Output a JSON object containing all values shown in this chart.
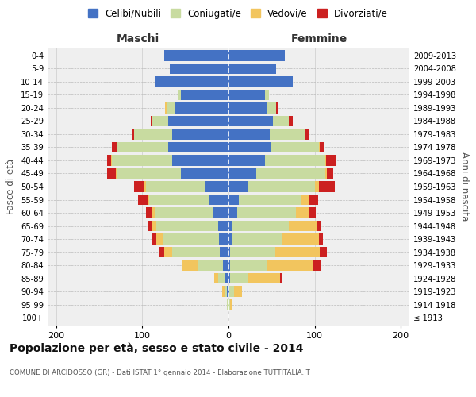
{
  "age_groups": [
    "100+",
    "95-99",
    "90-94",
    "85-89",
    "80-84",
    "75-79",
    "70-74",
    "65-69",
    "60-64",
    "55-59",
    "50-54",
    "45-49",
    "40-44",
    "35-39",
    "30-34",
    "25-29",
    "20-24",
    "15-19",
    "10-14",
    "5-9",
    "0-4"
  ],
  "birth_years": [
    "≤ 1913",
    "1914-1918",
    "1919-1923",
    "1924-1928",
    "1929-1933",
    "1934-1938",
    "1939-1943",
    "1944-1948",
    "1949-1953",
    "1954-1958",
    "1959-1963",
    "1964-1968",
    "1969-1973",
    "1974-1978",
    "1979-1983",
    "1984-1988",
    "1989-1993",
    "1994-1998",
    "1999-2003",
    "2004-2008",
    "2009-2013"
  ],
  "male_celibi": [
    0,
    1,
    2,
    4,
    6,
    10,
    11,
    12,
    18,
    22,
    28,
    55,
    65,
    70,
    65,
    70,
    62,
    55,
    85,
    68,
    75
  ],
  "male_coniugati": [
    0,
    1,
    3,
    8,
    30,
    55,
    65,
    72,
    68,
    70,
    68,
    75,
    70,
    60,
    45,
    18,
    10,
    4,
    0,
    0,
    0
  ],
  "male_vedovi": [
    0,
    0,
    2,
    5,
    18,
    10,
    8,
    5,
    2,
    1,
    2,
    1,
    1,
    0,
    0,
    0,
    2,
    0,
    0,
    0,
    0
  ],
  "male_divorziati": [
    0,
    0,
    0,
    0,
    0,
    5,
    5,
    5,
    8,
    12,
    12,
    10,
    5,
    5,
    2,
    2,
    0,
    0,
    0,
    0,
    0
  ],
  "female_nubili": [
    0,
    0,
    1,
    2,
    2,
    2,
    5,
    5,
    10,
    12,
    22,
    32,
    42,
    50,
    48,
    52,
    45,
    42,
    75,
    55,
    65
  ],
  "female_coniugate": [
    0,
    2,
    5,
    20,
    42,
    52,
    58,
    65,
    68,
    72,
    78,
    80,
    70,
    55,
    40,
    18,
    10,
    5,
    0,
    0,
    0
  ],
  "female_vedove": [
    0,
    2,
    10,
    38,
    55,
    52,
    42,
    32,
    15,
    10,
    5,
    2,
    1,
    1,
    0,
    0,
    0,
    0,
    0,
    0,
    0
  ],
  "female_divorziate": [
    0,
    0,
    0,
    2,
    8,
    8,
    5,
    5,
    8,
    10,
    18,
    8,
    12,
    5,
    5,
    5,
    2,
    0,
    0,
    0,
    0
  ],
  "col_cel": "#4472c4",
  "col_con": "#c8dba0",
  "col_ved": "#f2c55e",
  "col_div": "#cc2020",
  "title": "Popolazione per età, sesso e stato civile - 2014",
  "subtitle": "COMUNE DI ARCIDOSSO (GR) - Dati ISTAT 1° gennaio 2014 - Elaborazione TUTTITALIA.IT",
  "legend_labels": [
    "Celibi/Nubili",
    "Coniugati/e",
    "Vedovi/e",
    "Divorziati/e"
  ],
  "xlim": 210,
  "bg_color": "#efefef"
}
